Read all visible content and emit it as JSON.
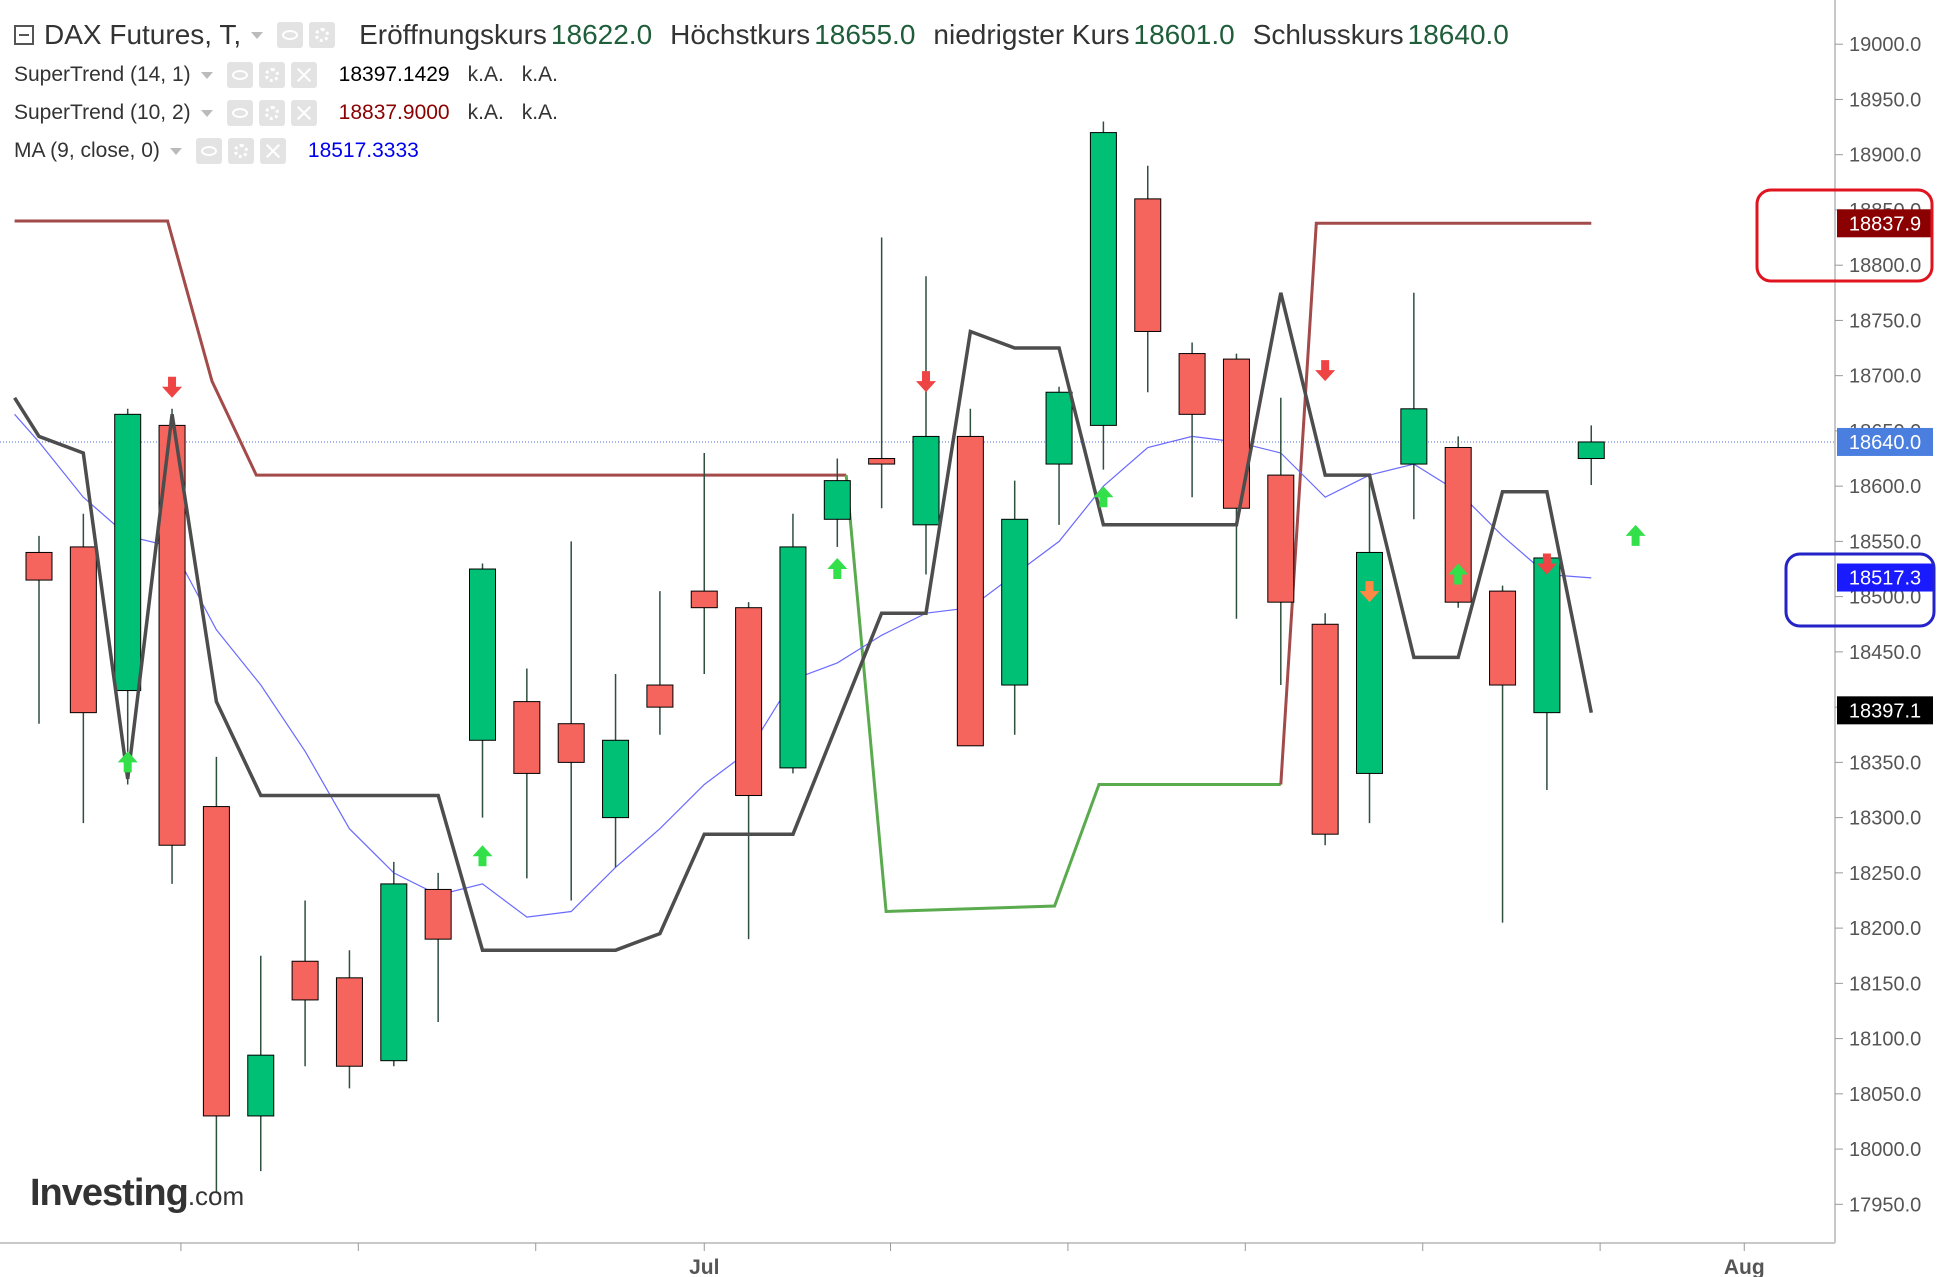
{
  "header": {
    "symbol": "DAX Futures, T,",
    "ohlc": [
      {
        "label": "Eröffnungskurs",
        "value": "18622.0"
      },
      {
        "label": "Höchstkurs",
        "value": "18655.0"
      },
      {
        "label": "niedrigster Kurs",
        "value": "18601.0"
      },
      {
        "label": "Schlusskurs",
        "value": "18640.0"
      }
    ]
  },
  "indicators": [
    {
      "name": "SuperTrend (14, 1)",
      "value": "18397.1429",
      "na1": "k.A.",
      "na2": "k.A.",
      "color": "#000000"
    },
    {
      "name": "SuperTrend (10, 2)",
      "value": "18837.9000",
      "na1": "k.A.",
      "na2": "k.A.",
      "color": "#8b0000"
    },
    {
      "name": "MA (9, close, 0)",
      "value": "18517.3333",
      "color": "#0000ee"
    }
  ],
  "logo": {
    "brand": "Investing",
    "suffix": ".com"
  },
  "colors": {
    "up": "#00c076",
    "down": "#f5655e",
    "wick": "#2f4f3f",
    "st14": "#4d4d4d",
    "st10_red": "#a34a4a",
    "st10_green": "#5aaa4e",
    "ma": "#6a6aff",
    "price_line": "#4a6fd8",
    "annot_red": "#e0141e",
    "annot_blue": "#2323c8"
  },
  "chart_data": {
    "type": "candlestick",
    "ylim": [
      17915,
      19040
    ],
    "yticks": [
      17950,
      18000,
      18050,
      18100,
      18150,
      18200,
      18250,
      18300,
      18350,
      18400,
      18450,
      18500,
      18550,
      18600,
      18650,
      18700,
      18750,
      18800,
      18850,
      18900,
      18950,
      19000
    ],
    "x_labels": [
      {
        "label": "Jul",
        "index": 15.0
      },
      {
        "label": "Aug",
        "index": 38.45
      }
    ],
    "x_ticks": [
      3.2,
      7.2,
      11.2,
      15.0,
      19.2,
      23.2,
      27.2,
      31.2,
      35.2,
      38.45
    ],
    "candles": [
      {
        "o": 18540,
        "h": 18555,
        "l": 18385,
        "c": 18515
      },
      {
        "o": 18545,
        "h": 18575,
        "l": 18295,
        "c": 18395
      },
      {
        "o": 18415,
        "h": 18670,
        "l": 18330,
        "c": 18665
      },
      {
        "o": 18655,
        "h": 18670,
        "l": 18240,
        "c": 18275
      },
      {
        "o": 18310,
        "h": 18355,
        "l": 17960,
        "c": 18030
      },
      {
        "o": 18030,
        "h": 18175,
        "l": 17980,
        "c": 18085
      },
      {
        "o": 18170,
        "h": 18225,
        "l": 18075,
        "c": 18135
      },
      {
        "o": 18155,
        "h": 18180,
        "l": 18055,
        "c": 18075
      },
      {
        "o": 18080,
        "h": 18260,
        "l": 18075,
        "c": 18240
      },
      {
        "o": 18235,
        "h": 18250,
        "l": 18115,
        "c": 18190
      },
      {
        "o": 18370,
        "h": 18530,
        "l": 18300,
        "c": 18525
      },
      {
        "o": 18405,
        "h": 18435,
        "l": 18245,
        "c": 18340
      },
      {
        "o": 18385,
        "h": 18550,
        "l": 18225,
        "c": 18350
      },
      {
        "o": 18300,
        "h": 18430,
        "l": 18255,
        "c": 18370
      },
      {
        "o": 18420,
        "h": 18505,
        "l": 18375,
        "c": 18400
      },
      {
        "o": 18505,
        "h": 18630,
        "l": 18430,
        "c": 18490
      },
      {
        "o": 18490,
        "h": 18495,
        "l": 18190,
        "c": 18320
      },
      {
        "o": 18345,
        "h": 18575,
        "l": 18340,
        "c": 18545
      },
      {
        "o": 18570,
        "h": 18625,
        "l": 18545,
        "c": 18605
      },
      {
        "o": 18625,
        "h": 18825,
        "l": 18580,
        "c": 18620
      },
      {
        "o": 18565,
        "h": 18790,
        "l": 18520,
        "c": 18645
      },
      {
        "o": 18645,
        "h": 18670,
        "l": 18370,
        "c": 18365
      },
      {
        "o": 18420,
        "h": 18605,
        "l": 18375,
        "c": 18570
      },
      {
        "o": 18620,
        "h": 18690,
        "l": 18565,
        "c": 18685
      },
      {
        "o": 18655,
        "h": 18930,
        "l": 18615,
        "c": 18920
      },
      {
        "o": 18860,
        "h": 18890,
        "l": 18685,
        "c": 18740
      },
      {
        "o": 18720,
        "h": 18730,
        "l": 18590,
        "c": 18665
      },
      {
        "o": 18715,
        "h": 18720,
        "l": 18480,
        "c": 18580
      },
      {
        "o": 18610,
        "h": 18680,
        "l": 18420,
        "c": 18495
      },
      {
        "o": 18475,
        "h": 18485,
        "l": 18275,
        "c": 18285
      },
      {
        "o": 18340,
        "h": 18610,
        "l": 18295,
        "c": 18540
      },
      {
        "o": 18620,
        "h": 18775,
        "l": 18570,
        "c": 18670
      },
      {
        "o": 18635,
        "h": 18645,
        "l": 18490,
        "c": 18495
      },
      {
        "o": 18505,
        "h": 18510,
        "l": 18205,
        "c": 18420
      },
      {
        "o": 18395,
        "h": 18535,
        "l": 18325,
        "c": 18535
      },
      {
        "o": 18625,
        "h": 18655,
        "l": 18601,
        "c": 18640
      }
    ],
    "supertrend_14_1": [
      [
        -0.55,
        18680
      ],
      [
        0,
        18645
      ],
      [
        1,
        18630
      ],
      [
        2,
        18335
      ],
      [
        3,
        18665
      ],
      [
        4,
        18405
      ],
      [
        5,
        18320
      ],
      [
        6,
        18320
      ],
      [
        7,
        18320
      ],
      [
        8,
        18320
      ],
      [
        9,
        18320
      ],
      [
        10,
        18180
      ],
      [
        11,
        18180
      ],
      [
        12,
        18180
      ],
      [
        13,
        18180
      ],
      [
        14,
        18195
      ],
      [
        15,
        18285
      ],
      [
        16,
        18285
      ],
      [
        17,
        18285
      ],
      [
        18,
        18385
      ],
      [
        19,
        18485
      ],
      [
        20,
        18485
      ],
      [
        21,
        18740
      ],
      [
        22,
        18725
      ],
      [
        23,
        18725
      ],
      [
        24,
        18565
      ],
      [
        25,
        18565
      ],
      [
        26,
        18565
      ],
      [
        27,
        18565
      ],
      [
        28,
        18775
      ],
      [
        29,
        18610
      ],
      [
        30,
        18610
      ],
      [
        31,
        18445
      ],
      [
        32,
        18445
      ],
      [
        33,
        18595
      ],
      [
        34,
        18595
      ],
      [
        35,
        18395
      ]
    ],
    "supertrend_10_2": {
      "resistance": [
        [
          -0.55,
          18840
        ],
        [
          2.9,
          18840
        ],
        [
          3.9,
          18695
        ],
        [
          4.9,
          18610
        ],
        [
          18.2,
          18610
        ]
      ],
      "support": [
        [
          18.2,
          18610
        ],
        [
          19.1,
          18215
        ],
        [
          22.9,
          18220
        ],
        [
          23.9,
          18330
        ],
        [
          28.0,
          18330
        ]
      ],
      "resistance_2": [
        [
          28.0,
          18330
        ],
        [
          28.8,
          18838
        ],
        [
          35,
          18838
        ]
      ]
    },
    "ma_9": [
      [
        -0.55,
        18665
      ],
      [
        0,
        18640
      ],
      [
        1,
        18590
      ],
      [
        2,
        18555
      ],
      [
        3,
        18545
      ],
      [
        4,
        18470
      ],
      [
        5,
        18420
      ],
      [
        6,
        18360
      ],
      [
        7,
        18290
      ],
      [
        8,
        18250
      ],
      [
        9,
        18230
      ],
      [
        10,
        18240
      ],
      [
        11,
        18210
      ],
      [
        12,
        18215
      ],
      [
        13,
        18255
      ],
      [
        14,
        18290
      ],
      [
        15,
        18330
      ],
      [
        16,
        18360
      ],
      [
        17,
        18425
      ],
      [
        18,
        18440
      ],
      [
        19,
        18465
      ],
      [
        20,
        18485
      ],
      [
        21,
        18490
      ],
      [
        22,
        18520
      ],
      [
        23,
        18550
      ],
      [
        24,
        18600
      ],
      [
        25,
        18635
      ],
      [
        26,
        18645
      ],
      [
        27,
        18640
      ],
      [
        28,
        18630
      ],
      [
        29,
        18590
      ],
      [
        30,
        18610
      ],
      [
        31,
        18620
      ],
      [
        32,
        18595
      ],
      [
        33,
        18555
      ],
      [
        34,
        18520
      ],
      [
        35,
        18517
      ]
    ],
    "arrows": [
      {
        "i": 2,
        "dir": "up",
        "y": 18350,
        "color": "#33e04a"
      },
      {
        "i": 3,
        "dir": "down",
        "y": 18690,
        "color": "#ee4444"
      },
      {
        "i": 10,
        "dir": "up",
        "y": 18265,
        "color": "#33e04a"
      },
      {
        "i": 18,
        "dir": "up",
        "y": 18525,
        "color": "#33e04a"
      },
      {
        "i": 20,
        "dir": "down",
        "y": 18695,
        "color": "#ee4444"
      },
      {
        "i": 24,
        "dir": "up",
        "y": 18590,
        "color": "#33e04a"
      },
      {
        "i": 29,
        "dir": "down",
        "y": 18705,
        "color": "#ee4444"
      },
      {
        "i": 30,
        "dir": "down",
        "y": 18505,
        "color": "#ff8844"
      },
      {
        "i": 32,
        "dir": "up",
        "y": 18520,
        "color": "#33e04a"
      },
      {
        "i": 34,
        "dir": "down",
        "y": 18530,
        "color": "#ee4444"
      },
      {
        "i": 36,
        "dir": "up",
        "y": 18555,
        "color": "#33e04a"
      }
    ],
    "price_labels": [
      {
        "value": 18837.9,
        "text": "18837.9",
        "bg": "#8b0000"
      },
      {
        "value": 18640.0,
        "text": "18640.0",
        "bg": "#4a7fe0"
      },
      {
        "value": 18517.3,
        "text": "18517.3",
        "bg": "#1a1aff"
      },
      {
        "value": 18397.1,
        "text": "18397.1",
        "bg": "#000000"
      }
    ],
    "current_price": 18640
  }
}
